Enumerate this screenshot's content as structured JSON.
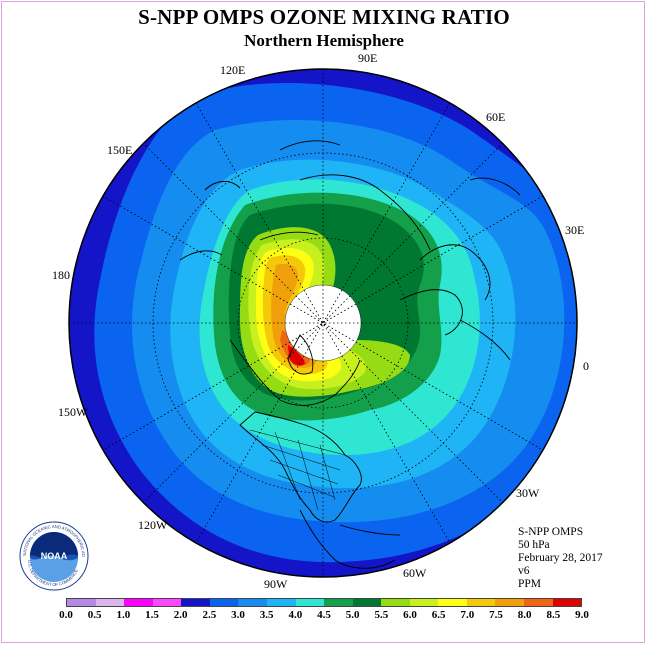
{
  "title": "S-NPP OMPS OZONE MIXING RATIO",
  "subtitle": "Northern Hemisphere",
  "longitude_labels": [
    "120E",
    "90E",
    "60E",
    "150E",
    "30E",
    "180",
    "0",
    "150W",
    "30W",
    "120W",
    "60W",
    "90W"
  ],
  "info": {
    "line1": "S-NPP OMPS",
    "line2": "50 hPa",
    "line3": "February 28, 2017",
    "line4": "v6",
    "line5": "PPM"
  },
  "logo": {
    "text": "NOAA",
    "ring_text": "NATIONAL OCEANIC AND ATMOSPHERIC ADMINISTRATION",
    "ring_text_bottom": "U.S. DEPARTMENT OF COMMERCE"
  },
  "colorbar": {
    "unit": "PPM",
    "labels": [
      "0.0",
      "0.5",
      "1.0",
      "1.5",
      "2.0",
      "2.5",
      "3.0",
      "3.5",
      "4.0",
      "4.5",
      "5.0",
      "5.5",
      "6.0",
      "6.5",
      "7.0",
      "7.5",
      "8.0",
      "8.5",
      "9.0"
    ],
    "colors": [
      "#b48ae6",
      "#dcb4f0",
      "#ff00ff",
      "#ff46ff",
      "#1414c8",
      "#0a64f0",
      "#148cf0",
      "#1eb4f5",
      "#2ee6d2",
      "#14a04b",
      "#007832",
      "#96dc14",
      "#c8f01e",
      "#ffff14",
      "#f5c80a",
      "#f0a00a",
      "#f06414",
      "#e10000",
      "#8c5a46"
    ]
  },
  "map_colors": {
    "level_2_0": "#1414c8",
    "level_2_5": "#0a64f0",
    "level_3_0": "#148cf0",
    "level_3_5": "#1eb4f5",
    "level_4_0": "#2ee6d2",
    "level_4_5": "#14a04b",
    "level_5_0": "#007832",
    "level_5_5": "#96dc14",
    "level_6_0": "#c8f01e",
    "level_6_5": "#ffff14",
    "level_7_0": "#f5c80a",
    "level_7_5": "#f0a00a",
    "level_8_0": "#f06414",
    "level_8_5": "#e10000",
    "no_data": "#ffffff"
  }
}
